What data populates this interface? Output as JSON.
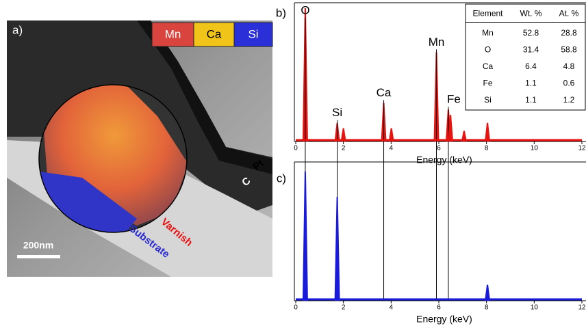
{
  "panel_a": {
    "label": "a)",
    "legend": [
      {
        "name": "Mn",
        "color": "#d9443f"
      },
      {
        "name": "Ca",
        "color": "#f0c419"
      },
      {
        "name": "Si",
        "color": "#2b2fd8"
      }
    ],
    "annotations": [
      "Pt",
      "C",
      "Varnish",
      "Substrate"
    ],
    "scale_bar": "200nm"
  },
  "chart_data": [
    {
      "type": "spectrum",
      "label": "b)",
      "xlabel": "Energy (keV)",
      "color": "#e8120f",
      "xlim": [
        0,
        12
      ],
      "xticks": [
        0,
        2,
        4,
        6,
        8,
        10,
        12
      ],
      "ylim": [
        0,
        100
      ],
      "x": [
        0.4,
        1.74,
        2.0,
        3.69,
        4.01,
        5.9,
        6.4,
        6.49,
        7.06,
        8.04
      ],
      "values": [
        100,
        14,
        10,
        29,
        10,
        67,
        24,
        20,
        8,
        14
      ],
      "peak_labels": [
        "O",
        "Si",
        null,
        "Ca",
        null,
        "Mn",
        "Fe",
        null,
        null,
        null
      ]
    },
    {
      "type": "spectrum",
      "label": "c)",
      "xlabel": "Energy (keV)",
      "color": "#1a1adb",
      "xlim": [
        0,
        12
      ],
      "xticks": [
        0,
        2,
        4,
        6,
        8,
        10,
        12
      ],
      "ylim": [
        0,
        100
      ],
      "x": [
        0.4,
        1.74,
        8.04
      ],
      "values": [
        97,
        78,
        12
      ]
    }
  ],
  "table": {
    "columns": [
      "Element",
      "Wt. %",
      "At. %"
    ],
    "rows": [
      [
        "Mn",
        52.8,
        28.8
      ],
      [
        "O",
        31.4,
        58.8
      ],
      [
        "Ca",
        6.4,
        4.8
      ],
      [
        "Fe",
        1.1,
        0.6
      ],
      [
        "Si",
        1.1,
        1.2
      ]
    ]
  }
}
